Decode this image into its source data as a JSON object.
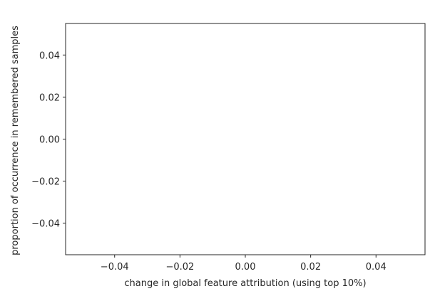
{
  "chart_data": {
    "type": "scatter",
    "title": "",
    "xlabel": "change in global feature attribution (using top 10%)",
    "ylabel": "proportion of occurrence in remembered samples",
    "xlim": [
      -0.055,
      0.055
    ],
    "ylim": [
      -0.055,
      0.055
    ],
    "xticks": [
      {
        "value": -0.04,
        "label": "−0.04"
      },
      {
        "value": -0.02,
        "label": "−0.02"
      },
      {
        "value": 0.0,
        "label": "0.00"
      },
      {
        "value": 0.02,
        "label": "0.02"
      },
      {
        "value": 0.04,
        "label": "0.04"
      }
    ],
    "yticks": [
      {
        "value": 0.04,
        "label": "0.04"
      },
      {
        "value": 0.02,
        "label": "0.02"
      },
      {
        "value": 0.0,
        "label": "0.00"
      },
      {
        "value": -0.02,
        "label": "−0.02"
      },
      {
        "value": -0.04,
        "label": "−0.04"
      }
    ],
    "series": [
      {
        "x": [],
        "y": []
      }
    ],
    "grid": false,
    "legend": "none"
  }
}
